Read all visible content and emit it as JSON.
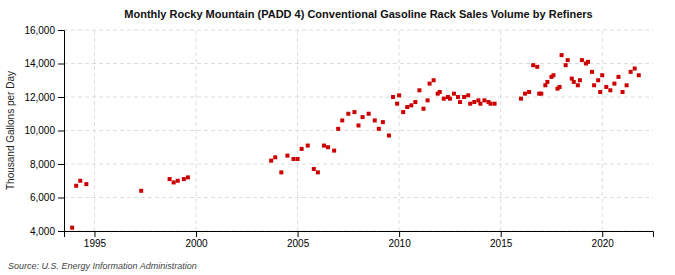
{
  "chart_data": {
    "type": "scatter",
    "title": "Monthly Rocky Mountain (PADD 4) Conventional Gasoline Rack Sales Volume by Refiners",
    "ylabel": "Thousand Gallons per Day",
    "source": "Source: U.S. Energy Information Administration",
    "color": "#cc0000",
    "marker": "square",
    "grid": true,
    "xlim": [
      1993.5,
      2022.5
    ],
    "xticks": [
      1995,
      2000,
      2005,
      2010,
      2015,
      2020
    ],
    "ylim": [
      4000,
      16000
    ],
    "yticks": [
      {
        "value": 4000,
        "label": "4,000"
      },
      {
        "value": 6000,
        "label": "6,000"
      },
      {
        "value": 8000,
        "label": "8,000"
      },
      {
        "value": 10000,
        "label": "10,000"
      },
      {
        "value": 12000,
        "label": "12,000"
      },
      {
        "value": 14000,
        "label": "14,000"
      },
      {
        "value": 16000,
        "label": "16,000"
      }
    ],
    "x": [
      1993.9,
      1994.1,
      1994.3,
      1994.6,
      1997.3,
      1998.7,
      1998.9,
      1999.1,
      1999.4,
      1999.6,
      2003.7,
      2003.9,
      2004.2,
      2004.5,
      2004.8,
      2005.0,
      2005.2,
      2005.5,
      2005.8,
      2006.0,
      2006.3,
      2006.5,
      2006.8,
      2007.0,
      2007.2,
      2007.5,
      2007.8,
      2008.0,
      2008.2,
      2008.5,
      2008.8,
      2009.0,
      2009.2,
      2009.5,
      2009.7,
      2009.9,
      2010.0,
      2010.2,
      2010.4,
      2010.6,
      2010.8,
      2011.0,
      2011.2,
      2011.4,
      2011.5,
      2011.7,
      2011.9,
      2012.0,
      2012.2,
      2012.4,
      2012.5,
      2012.7,
      2012.9,
      2013.0,
      2013.2,
      2013.4,
      2013.5,
      2013.7,
      2013.9,
      2014.0,
      2014.2,
      2014.4,
      2014.5,
      2014.7,
      2016.0,
      2016.2,
      2016.4,
      2016.6,
      2016.8,
      2016.9,
      2017.0,
      2017.2,
      2017.3,
      2017.5,
      2017.6,
      2017.8,
      2017.9,
      2018.0,
      2018.2,
      2018.3,
      2018.5,
      2018.6,
      2018.8,
      2018.9,
      2019.0,
      2019.2,
      2019.3,
      2019.5,
      2019.6,
      2019.8,
      2019.9,
      2020.0,
      2020.2,
      2020.4,
      2020.6,
      2020.8,
      2021.0,
      2021.2,
      2021.4,
      2021.6,
      2021.8
    ],
    "values": [
      4200,
      6700,
      7000,
      6800,
      6400,
      7100,
      6900,
      7000,
      7100,
      7200,
      8200,
      8400,
      7500,
      8500,
      8300,
      8300,
      8900,
      9100,
      7700,
      7500,
      9100,
      9000,
      8800,
      10100,
      10600,
      11000,
      11100,
      10300,
      10800,
      11000,
      10600,
      10100,
      10500,
      9700,
      12000,
      11600,
      12100,
      11100,
      11400,
      11500,
      11700,
      12400,
      11300,
      11800,
      12800,
      13000,
      12200,
      12300,
      11900,
      12000,
      11900,
      12200,
      12000,
      11700,
      12000,
      12100,
      11600,
      11700,
      11800,
      11600,
      11800,
      11700,
      11600,
      11600,
      11900,
      12200,
      12300,
      13900,
      13800,
      12200,
      12200,
      12700,
      12900,
      13200,
      13300,
      12500,
      12600,
      14500,
      13900,
      14200,
      13100,
      12900,
      12700,
      13000,
      14200,
      14000,
      14100,
      13500,
      12700,
      13000,
      12300,
      13300,
      12600,
      12400,
      12800,
      13200,
      12300,
      12700,
      13500,
      13700,
      13300
    ]
  }
}
